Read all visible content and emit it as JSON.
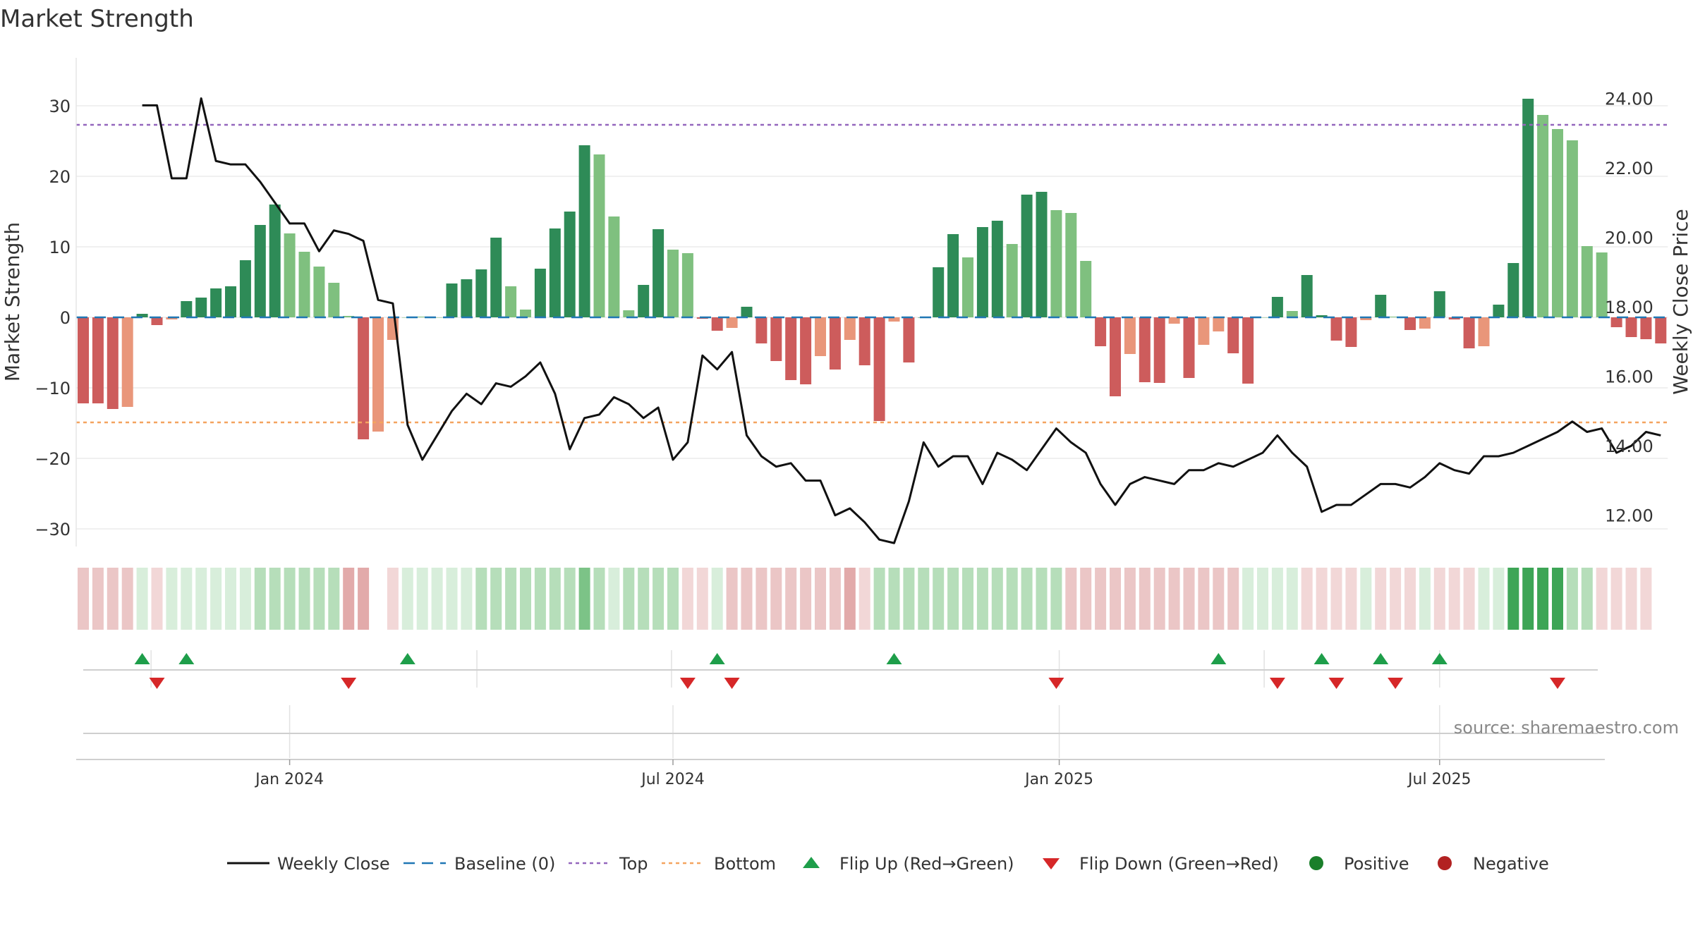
{
  "chart_data": {
    "type": "bar",
    "title": "Market Strength",
    "ylabel": "Market Strength",
    "y2label": "Weekly Close Price",
    "ylim": [
      -33,
      34
    ],
    "y2lim": [
      11.0,
      24.6
    ],
    "yticks": [
      30,
      20,
      10,
      0,
      -10,
      -20,
      -30
    ],
    "yticklabels": [
      "30",
      "20",
      "10",
      "0",
      "−10",
      "−20",
      "−30"
    ],
    "y2ticks": [
      24,
      22,
      20,
      18,
      16,
      14,
      12
    ],
    "y2ticklabels": [
      "24.00",
      "22.00",
      "20.00",
      "18.00",
      "16.00",
      "14.00",
      "12.00"
    ],
    "xticks": [
      {
        "label": "Jan 2024",
        "week": 14
      },
      {
        "label": "Jul 2024",
        "week": 40
      },
      {
        "label": "Jan 2025",
        "week": 66.2
      },
      {
        "label": "Jul 2025",
        "week": 92
      }
    ],
    "top_level": 27.3,
    "bottom_level": -14.9,
    "baseline": 0,
    "colors": {
      "strong_pos": "#2e8b57",
      "weak_pos": "#7fc07f",
      "strong_neg": "#cd5c5c",
      "weak_neg": "#e9967a",
      "line": "#111111",
      "baseline": "#1f77b4",
      "top": "#9467bd",
      "bottom": "#f4a460",
      "flip_up": "#1e9e4a",
      "flip_down": "#d62728",
      "positive": "#1a7f2a",
      "negative": "#b22222",
      "grid": "#ececec"
    },
    "series": [
      {
        "name": "Market Strength",
        "values": [
          -12.2,
          -12.2,
          -13.0,
          -12.7,
          0.5,
          -1.1,
          -0.3,
          2.3,
          2.8,
          4.1,
          4.4,
          8.1,
          13.1,
          16.0,
          11.9,
          9.3,
          7.2,
          4.9,
          0.2,
          -17.3,
          -16.2,
          -3.2,
          0.0,
          0.1,
          0.0,
          4.8,
          5.4,
          6.8,
          11.3,
          4.4,
          1.1,
          6.9,
          12.6,
          15.0,
          24.4,
          23.1,
          14.3,
          1.0,
          4.6,
          12.5,
          9.6,
          9.1,
          -0.2,
          -1.9,
          -1.5,
          1.5,
          -3.7,
          -6.2,
          -8.9,
          -9.5,
          -5.5,
          -7.4,
          -3.2,
          -6.8,
          -14.7,
          -0.6,
          -6.4,
          0.0,
          7.1,
          11.8,
          8.5,
          12.8,
          13.7,
          10.4,
          17.4,
          17.8,
          15.2,
          14.8,
          8.0,
          -4.1,
          -11.2,
          -5.2,
          -9.2,
          -9.3,
          -0.9,
          -8.6,
          -3.9,
          -2.0,
          -5.1,
          -9.4,
          0.0,
          2.9,
          0.9,
          6.0,
          0.3,
          -3.3,
          -4.2,
          -0.4,
          3.2,
          0.1,
          -1.8,
          -1.6,
          3.7,
          -0.3,
          -4.4,
          -4.1,
          1.8,
          7.7,
          31.0,
          28.7,
          26.7,
          25.1,
          10.1,
          9.2,
          -1.4,
          -2.8,
          -3.1,
          -3.7
        ],
        "strength": [
          "strong",
          "strong",
          "strong",
          "weak",
          "strong",
          "strong",
          "weak",
          "strong",
          "strong",
          "strong",
          "strong",
          "strong",
          "strong",
          "strong",
          "weak",
          "weak",
          "weak",
          "weak",
          "weak",
          "strong",
          "weak",
          "weak",
          "weak",
          "weak",
          "weak",
          "strong",
          "strong",
          "strong",
          "strong",
          "weak",
          "weak",
          "strong",
          "strong",
          "strong",
          "strong",
          "weak",
          "weak",
          "weak",
          "strong",
          "strong",
          "weak",
          "weak",
          "strong",
          "strong",
          "weak",
          "strong",
          "strong",
          "strong",
          "strong",
          "strong",
          "weak",
          "strong",
          "weak",
          "strong",
          "strong",
          "weak",
          "strong",
          "strong",
          "strong",
          "strong",
          "weak",
          "strong",
          "strong",
          "weak",
          "strong",
          "strong",
          "weak",
          "weak",
          "weak",
          "strong",
          "strong",
          "weak",
          "strong",
          "strong",
          "weak",
          "strong",
          "weak",
          "weak",
          "strong",
          "strong",
          "weak",
          "strong",
          "weak",
          "strong",
          "strong",
          "strong",
          "strong",
          "weak",
          "strong",
          "weak",
          "strong",
          "weak",
          "strong",
          "strong",
          "strong",
          "weak",
          "strong",
          "strong",
          "strong",
          "weak",
          "weak",
          "weak",
          "weak",
          "weak",
          "strong",
          "strong",
          "strong",
          "strong"
        ]
      },
      {
        "name": "Weekly Close",
        "values": [
          23.8,
          23.8,
          21.7,
          21.7,
          24.0,
          22.2,
          22.1,
          22.1,
          21.6,
          21.0,
          20.4,
          20.4,
          19.6,
          20.2,
          20.1,
          19.9,
          18.2,
          18.1,
          14.6,
          13.6,
          14.3,
          15.0,
          15.5,
          15.2,
          15.8,
          15.7,
          16.0,
          16.4,
          15.5,
          13.9,
          14.8,
          14.9,
          15.4,
          15.2,
          14.8,
          15.1,
          13.6,
          14.1,
          16.6,
          16.2,
          16.7,
          14.3,
          13.7,
          13.4,
          13.5,
          13.0,
          13.0,
          12.0,
          12.2,
          11.8,
          11.3,
          11.2,
          12.4,
          14.1,
          13.4,
          13.7,
          13.7,
          12.9,
          13.8,
          13.6,
          13.3,
          13.9,
          14.5,
          14.1,
          13.8,
          12.9,
          12.3,
          12.9,
          13.1,
          13.0,
          12.9,
          13.3,
          13.3,
          13.5,
          13.4,
          13.6,
          13.8,
          14.3,
          13.8,
          13.4,
          12.1,
          12.3,
          12.3,
          12.6,
          12.9,
          12.9,
          12.8,
          13.1,
          13.5,
          13.3,
          13.2,
          13.7,
          13.7,
          13.8,
          14.0,
          14.2,
          14.4,
          14.7,
          14.4,
          14.5,
          13.8,
          14.0,
          14.4,
          14.3
        ],
        "value_offset": 4
      }
    ],
    "regime_strip": [
      -2,
      -2,
      -2,
      -2,
      1,
      -1,
      1,
      1,
      1,
      1,
      1,
      1,
      2,
      2,
      2,
      2,
      2,
      2,
      -3,
      -3,
      0,
      -1,
      1,
      1,
      1,
      1,
      1,
      2,
      2,
      2,
      2,
      2,
      2,
      2,
      3,
      2,
      1,
      2,
      2,
      2,
      2,
      -1,
      -1,
      1,
      -2,
      -2,
      -2,
      -2,
      -2,
      -2,
      -2,
      -2,
      -3,
      -1,
      2,
      2,
      2,
      2,
      2,
      2,
      2,
      2,
      2,
      2,
      2,
      2,
      2,
      -2,
      -2,
      -2,
      -2,
      -2,
      -2,
      -2,
      -2,
      -2,
      -2,
      -2,
      -2,
      1,
      1,
      1,
      1,
      -1,
      -1,
      -1,
      -1,
      1,
      -1,
      -1,
      -1,
      1,
      -1,
      -1,
      -1,
      1,
      1,
      4,
      4,
      4,
      4,
      2,
      2,
      -1,
      -1,
      -1,
      -1
    ],
    "flip_up_weeks": [
      4,
      7,
      22,
      43,
      55,
      77,
      84,
      88,
      92
    ],
    "flip_down_weeks": [
      5,
      18,
      41,
      44,
      66,
      81,
      85,
      89,
      100
    ],
    "watermark": "source: sharemaestro.com",
    "legend": [
      "Weekly Close",
      "Baseline (0)",
      "Top",
      "Bottom",
      "Flip Up (Red→Green)",
      "Flip Down (Green→Red)",
      "Positive",
      "Negative"
    ]
  }
}
